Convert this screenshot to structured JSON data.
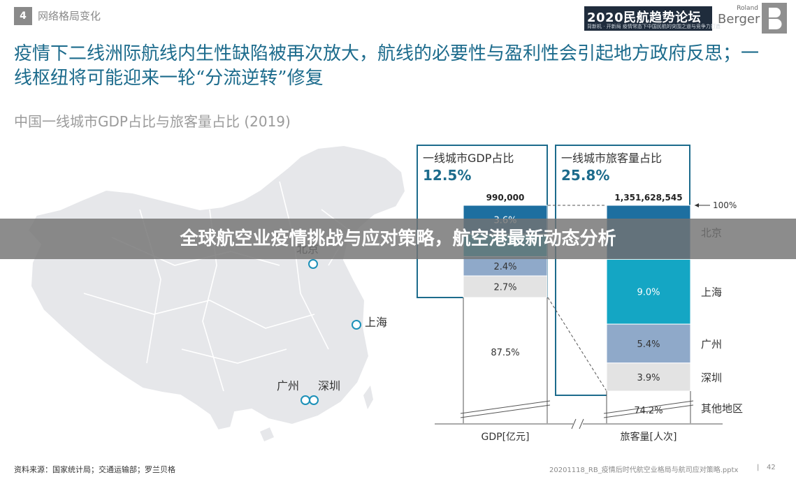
{
  "header": {
    "section_number": "4",
    "section_title": "网络格局变化",
    "forum_title": "2020民航趋势论坛",
    "forum_subtitle": "背新机 · 开新局  疫情常态下中国民航的突围之道与竞争力打造",
    "brand_top": "Roland",
    "brand_bottom": "Berger"
  },
  "headline": "疫情下二线洲际航线内生性缺陷被再次放大，航线的必要性与盈利性会引起地方政府反思；一线枢纽将可能迎来一轮“分流逆转”修复",
  "overlay_banner": "全球航空业疫情挑战与应对策略，航空港最新动态分析",
  "footer": {
    "source": "资料来源：国家统计局；交通运输部；罗兰贝格",
    "file": "20201118_RB_疫情后时代航空业格局与航司应对策略.pptx",
    "separator": "|",
    "page": "42"
  },
  "colors": {
    "accent": "#1c6b8c",
    "beijing": "#1d6fa0",
    "shanghai": "#14a6c4",
    "guangzhou": "#8fa9c9",
    "shenzhen": "#e3e3e3",
    "map": "#e6e7ea",
    "map_border": "#ffffff"
  },
  "chart_data": {
    "type": "bar",
    "title": "中国一线城市GDP占比与旅客量占比 (2019)",
    "subtype": "stacked-100",
    "categories": [
      "GDP[亿元]",
      "旅客量[人次]"
    ],
    "totals": [
      "990,000",
      "1,351,628,545"
    ],
    "hundred_label": "100%",
    "share_boxes": [
      {
        "label": "一线城市GDP占比",
        "value": "12.5%"
      },
      {
        "label": "一线城市旅客量占比",
        "value": "25.8%"
      }
    ],
    "series": [
      {
        "name": "北京",
        "values": [
          3.6,
          7.5
        ],
        "labels": [
          "3.6%",
          ""
        ]
      },
      {
        "name": "上海",
        "values": [
          2.8,
          9.0
        ],
        "labels": [
          "",
          "9.0%"
        ]
      },
      {
        "name": "广州",
        "values": [
          2.4,
          5.4
        ],
        "labels": [
          "2.4%",
          "5.4%"
        ]
      },
      {
        "name": "深圳",
        "values": [
          2.7,
          3.9
        ],
        "labels": [
          "2.7%",
          "3.9%"
        ]
      },
      {
        "name": "其他地区",
        "values": [
          87.5,
          74.2
        ],
        "labels": [
          "87.5%",
          "74.2%"
        ]
      }
    ],
    "map_cities": [
      "北京",
      "上海",
      "广州",
      "深圳"
    ]
  }
}
